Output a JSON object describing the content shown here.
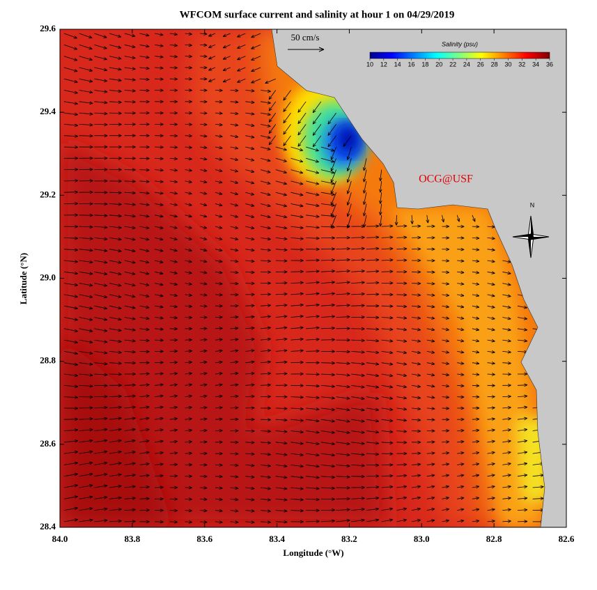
{
  "title": "WFCOM surface current and salinity at hour 1 on 04/29/2019",
  "x_axis": {
    "label": "Longitude (°W)",
    "lim": [
      84,
      82.6
    ],
    "ticks": [
      {
        "value": 84,
        "label": "84.0"
      },
      83.8,
      83.6,
      83.4,
      83.2,
      {
        "value": 83,
        "label": "83.0"
      },
      82.8,
      82.6
    ]
  },
  "y_axis": {
    "label": "Latitude (°N)",
    "lim": [
      28.4,
      29.6
    ],
    "ticks": [
      28.4,
      28.6,
      28.8,
      {
        "value": 29,
        "label": "29.0"
      },
      29.2,
      29.4,
      29.6
    ]
  },
  "colorbar": {
    "label": "Salinity (psu)",
    "lim": [
      10,
      36
    ],
    "ticks": [
      10,
      12,
      14,
      16,
      18,
      20,
      22,
      24,
      26,
      28,
      30,
      32,
      34,
      36
    ]
  },
  "scale_label": "50 cm/s",
  "credit": "OCG@USF",
  "north": "N"
}
